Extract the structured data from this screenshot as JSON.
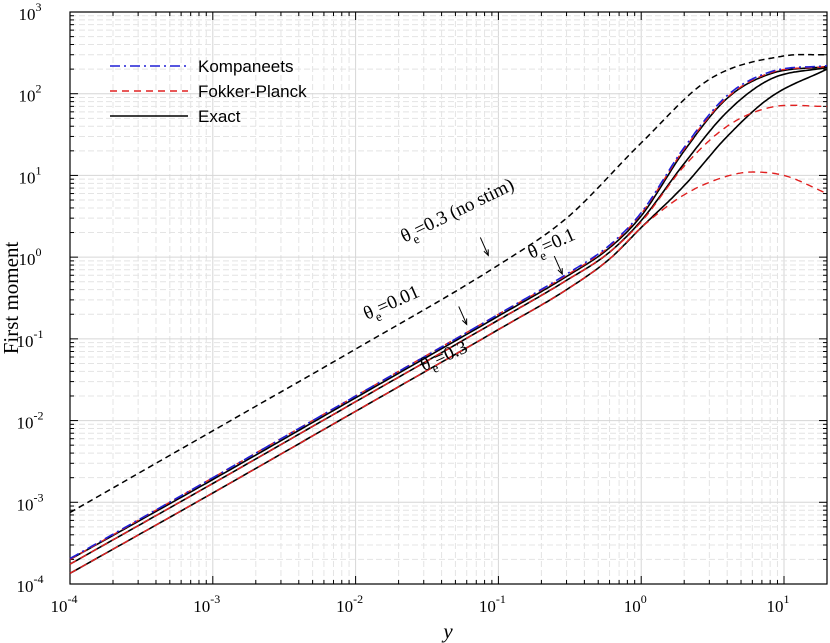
{
  "chart_data": {
    "type": "line",
    "xlabel": "y",
    "ylabel": "First moment",
    "x_scale": "log",
    "y_scale": "log",
    "xlim": [
      0.0001,
      20
    ],
    "ylim": [
      0.0001,
      1000
    ],
    "grid": true,
    "legend_position": "top-left",
    "x_ticks": [
      {
        "base": "10",
        "exp": "-4"
      },
      {
        "base": "10",
        "exp": "-3"
      },
      {
        "base": "10",
        "exp": "-2"
      },
      {
        "base": "10",
        "exp": "-1"
      },
      {
        "base": "10",
        "exp": "0"
      },
      {
        "base": "10",
        "exp": "1"
      }
    ],
    "y_ticks": [
      {
        "base": "10",
        "exp": "-4"
      },
      {
        "base": "10",
        "exp": "-3"
      },
      {
        "base": "10",
        "exp": "-2"
      },
      {
        "base": "10",
        "exp": "-1"
      },
      {
        "base": "10",
        "exp": "0"
      },
      {
        "base": "10",
        "exp": "1"
      },
      {
        "base": "10",
        "exp": "2"
      },
      {
        "base": "10",
        "exp": "3"
      }
    ],
    "legend": [
      {
        "label": "Kompaneets",
        "color": "#1f1fd6",
        "style": "dashdot"
      },
      {
        "label": "Fokker-Planck",
        "color": "#e02020",
        "style": "dashed"
      },
      {
        "label": "Exact",
        "color": "#000000",
        "style": "solid"
      }
    ],
    "series": [
      {
        "style": "kompaneets",
        "theta_label": "θe=0.01",
        "x": [
          0.0001,
          0.001,
          0.01,
          0.1,
          0.3,
          0.6,
          1,
          2,
          4,
          8,
          20
        ],
        "y": [
          0.000205,
          0.002,
          0.02,
          0.2,
          0.62,
          1.4,
          3.5,
          22,
          95,
          185,
          220
        ]
      },
      {
        "style": "fokker_planck",
        "theta_label": "θe=0.01",
        "x": [
          0.0001,
          0.001,
          0.01,
          0.1,
          0.3,
          0.6,
          1,
          2,
          4,
          8,
          20
        ],
        "y": [
          0.0002,
          0.002,
          0.02,
          0.2,
          0.6,
          1.35,
          3.4,
          21,
          90,
          180,
          215
        ]
      },
      {
        "style": "exact",
        "theta_label": "θe=0.01",
        "x": [
          0.0001,
          0.001,
          0.01,
          0.1,
          0.3,
          0.6,
          1,
          2,
          4,
          8,
          20
        ],
        "y": [
          0.0002,
          0.0019,
          0.019,
          0.19,
          0.58,
          1.3,
          3.2,
          20,
          88,
          175,
          215
        ]
      },
      {
        "style": "fokker_planck",
        "theta_label": "θe=0.1",
        "x": [
          0.0001,
          0.001,
          0.01,
          0.1,
          0.3,
          0.6,
          1,
          2,
          4,
          8,
          20
        ],
        "y": [
          0.000175,
          0.0017,
          0.017,
          0.17,
          0.52,
          1.15,
          2.7,
          13,
          40,
          68,
          70
        ]
      },
      {
        "style": "exact",
        "theta_label": "θe=0.1",
        "x": [
          0.0001,
          0.001,
          0.01,
          0.1,
          0.3,
          0.6,
          1,
          2,
          4,
          8,
          20
        ],
        "y": [
          0.000175,
          0.0017,
          0.017,
          0.17,
          0.52,
          1.15,
          2.8,
          14,
          60,
          150,
          210
        ]
      },
      {
        "style": "fokker_planck",
        "theta_label": "θe=0.3",
        "x": [
          0.0001,
          0.001,
          0.01,
          0.1,
          0.3,
          0.6,
          1,
          2,
          4,
          6,
          10,
          20
        ],
        "y": [
          0.000135,
          0.0013,
          0.013,
          0.13,
          0.4,
          0.95,
          2.3,
          5.8,
          9.8,
          11,
          10,
          6
        ]
      },
      {
        "style": "exact",
        "theta_label": "θe=0.3",
        "x": [
          0.0001,
          0.001,
          0.01,
          0.1,
          0.3,
          0.6,
          1,
          2,
          4,
          8,
          20
        ],
        "y": [
          0.000135,
          0.0013,
          0.013,
          0.13,
          0.4,
          0.95,
          2.3,
          7.5,
          30,
          90,
          200
        ]
      },
      {
        "style": "exact_nostim",
        "theta_label": "θe=0.3 (no stim)",
        "x": [
          0.0001,
          0.001,
          0.01,
          0.1,
          0.3,
          1,
          3,
          10,
          20
        ],
        "y": [
          0.00075,
          0.0075,
          0.075,
          0.8,
          3.0,
          25,
          150,
          290,
          300
        ]
      }
    ],
    "annotations": [
      {
        "base": "θ",
        "sub": "e",
        "rest": "=0.3 (no stim)",
        "x": 0.022,
        "y": 1.5,
        "angle": -26,
        "arrow_to": [
          0.085,
          1.05
        ]
      },
      {
        "base": "θ",
        "sub": "e",
        "rest": "=0.1",
        "x": 0.17,
        "y": 0.95,
        "angle": -24,
        "arrow_to": [
          0.28,
          0.62
        ]
      },
      {
        "base": "θ",
        "sub": "e",
        "rest": "=0.01",
        "x": 0.012,
        "y": 0.17,
        "angle": -24,
        "arrow_to": [
          0.06,
          0.15
        ]
      },
      {
        "base": "θ",
        "sub": "e",
        "rest": "=0.3",
        "x": 0.03,
        "y": 0.04,
        "angle": -24,
        "arrow_to": null
      }
    ]
  }
}
